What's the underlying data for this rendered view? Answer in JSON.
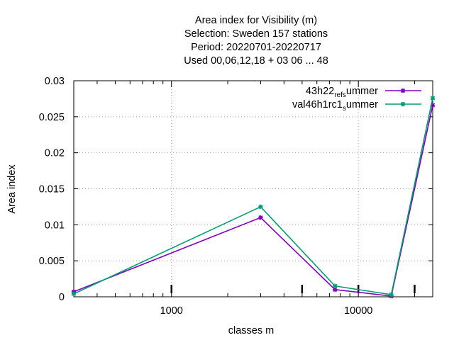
{
  "chart_data": {
    "type": "line",
    "title_lines": [
      "Area index  for Visibility (m)",
      "Selection: Sweden    157 stations",
      "Period: 20220701-20220717",
      "Used  00,06,12,18  + 03 06 ... 48"
    ],
    "xlabel": "classes m",
    "ylabel": "Area index",
    "x_scale": "log",
    "xlim": [
      300,
      25000
    ],
    "ylim": [
      0,
      0.03
    ],
    "x_ticks": [
      1000,
      10000
    ],
    "x_tick_labels": [
      "1000",
      "10000"
    ],
    "y_ticks": [
      0,
      0.005,
      0.01,
      0.015,
      0.02,
      0.025,
      0.03
    ],
    "y_tick_labels": [
      "0",
      "0.005",
      "0.01",
      "0.015",
      "0.02",
      "0.025",
      "0.03"
    ],
    "class_marks": [
      1000,
      5000,
      10000,
      20000
    ],
    "grid": true,
    "legend_position": "top-right",
    "series": [
      {
        "legend_main": "43h22",
        "legend_sub1": "ref",
        "legend_mid": "",
        "legend_sub2": "s",
        "legend_tail": "ummer",
        "color": "#8000c0",
        "x": [
          300,
          3000,
          7500,
          15000,
          25000
        ],
        "values": [
          0.0007,
          0.011,
          0.001,
          0.0001,
          0.0266
        ]
      },
      {
        "legend_main": "val46h1rc1",
        "legend_sub1": "",
        "legend_mid": "",
        "legend_sub2": "s",
        "legend_tail": "ummer",
        "color": "#009e73",
        "x": [
          300,
          3000,
          7500,
          15000,
          25000
        ],
        "values": [
          0.0004,
          0.0125,
          0.0015,
          0.0003,
          0.0276
        ]
      }
    ]
  }
}
